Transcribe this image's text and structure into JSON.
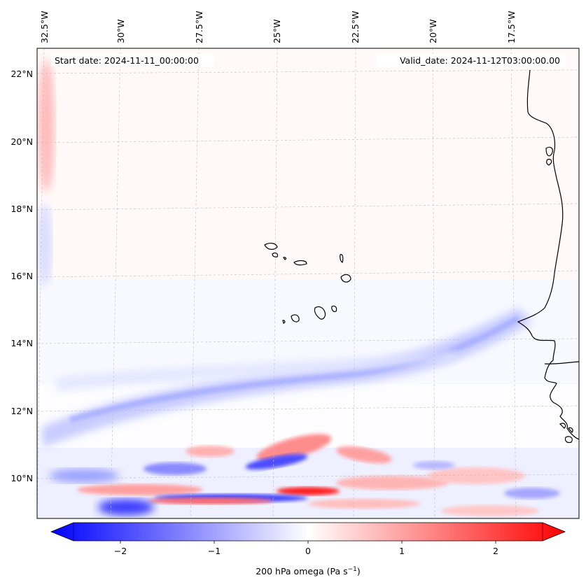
{
  "map": {
    "start_label": "Start date: 2024-11-11_00:00:00",
    "valid_label": "Valid_date: 2024-11-12T03:00:00.00",
    "lon_ticks": [
      "32.5°W",
      "30°W",
      "27.5°W",
      "25°W",
      "22.5°W",
      "20°W",
      "17.5°W"
    ],
    "lat_ticks": [
      "22°N",
      "20°N",
      "18°N",
      "16°N",
      "14°N",
      "12°N",
      "10°N"
    ],
    "colors": {
      "negative": "#0000ff",
      "neutral": "#ffffff",
      "positive": "#ff0000",
      "coastline": "#000000",
      "grid": "#bbbbbb"
    }
  },
  "colorbar": {
    "ticks": [
      "−2",
      "−1",
      "0",
      "1",
      "2"
    ],
    "label_main": "200 hPa omega (Pa s",
    "label_sup": "−1",
    "label_end": ")"
  }
}
